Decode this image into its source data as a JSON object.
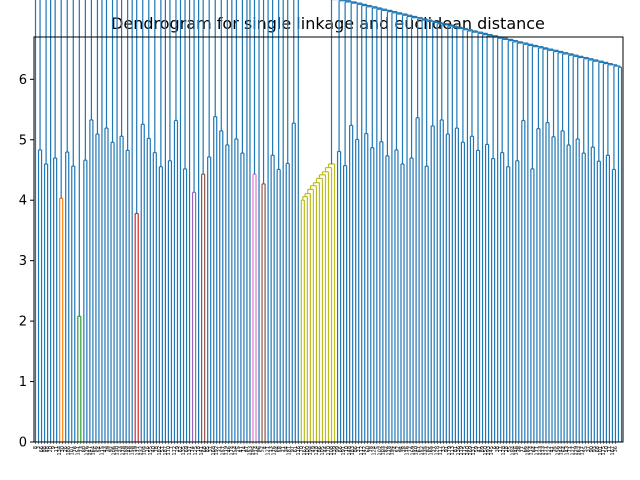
{
  "chart_data": {
    "type": "dendrogram",
    "title": "Dendrogram for single linkage and euclidean distance",
    "ylim": [
      0,
      6.7
    ],
    "yticks": [
      0,
      1,
      2,
      3,
      4,
      5,
      6
    ],
    "grid": false,
    "legend": "none",
    "leaf_count": 195,
    "colors": {
      "above_threshold": "#1f77b4",
      "orange": "#ff7f0e",
      "green": "#2ca02c",
      "red": "#d62728",
      "purple": "#9467bd",
      "brown": "#8c564b",
      "pink": "#e377c2",
      "olive": "#bcbd22",
      "cyan": "#17becf"
    },
    "colored_clusters": [
      {
        "color": "orange",
        "merge_height": 4.03,
        "leaves": 2
      },
      {
        "color": "green",
        "merge_height": 2.08,
        "leaves": 2
      },
      {
        "color": "red",
        "merge_height": 3.78,
        "leaves": 2
      },
      {
        "color": "purple",
        "merge_height": 4.13,
        "leaves": 2
      },
      {
        "color": "brown",
        "merge_height": 4.43,
        "leaves": 2
      },
      {
        "color": "pink",
        "merge_height": 4.43,
        "leaves": 2
      },
      {
        "color": "brown",
        "merge_height": 4.27,
        "leaves": 2
      },
      {
        "color": "olive",
        "merge_height": 4.6,
        "leaves": 12
      },
      {
        "color": "cyan",
        "merge_height": 4.18,
        "leaves": 2
      }
    ],
    "chain_merge_heights": [
      6.2,
      6.1,
      6.02,
      5.98,
      5.95,
      5.9,
      5.87,
      5.85,
      5.83,
      5.8,
      5.78,
      5.75,
      5.72,
      5.7,
      5.68,
      5.65,
      5.62,
      5.6,
      5.58,
      5.55,
      5.52,
      5.5,
      5.47,
      5.45,
      5.42,
      5.4,
      5.38,
      5.35,
      5.32,
      5.3,
      5.28,
      5.25,
      5.22
    ],
    "top_merges": [
      6.35,
      6.3,
      6.25,
      6.2,
      5.27
    ],
    "leaf_labels": [
      "8",
      "3",
      "66",
      "88",
      "48",
      "20",
      "9",
      "11",
      "134",
      "30",
      "26",
      "186",
      "101",
      "76",
      "151",
      "73",
      "80",
      "126",
      "147",
      "164",
      "56",
      "54",
      "115",
      "43",
      "39",
      "92",
      "106",
      "130",
      "23",
      "178",
      "189",
      "48",
      "158",
      "19",
      "177",
      "132",
      "104",
      "16",
      "155",
      "40",
      "78",
      "182",
      "57",
      "187",
      "110",
      "7",
      "172",
      "29",
      "62",
      "135",
      "69",
      "137",
      "74",
      "125",
      "18",
      "141",
      "68",
      "85",
      "37",
      "168",
      "192",
      "31",
      "157",
      "119",
      "46",
      "174",
      "154",
      "25",
      "47",
      "14",
      "87",
      "153",
      "194",
      "114",
      "96",
      "52",
      "4",
      "121",
      "13",
      "176",
      "84",
      "58",
      "21",
      "34",
      "181",
      "97",
      "61",
      "116",
      "70",
      "162",
      "100",
      "194",
      "49",
      "128",
      "86",
      "105",
      "44",
      "170",
      "108",
      "139",
      "99",
      "66",
      "191",
      "10",
      "148",
      "183",
      "86",
      "31",
      "112",
      "142",
      "60",
      "78",
      "124",
      "5",
      "102",
      "103",
      "82",
      "118",
      "194",
      "24",
      "52",
      "94",
      "28",
      "176",
      "72",
      "169",
      "140",
      "67",
      "152",
      "135",
      "82",
      "165",
      "27",
      "128",
      "117",
      "33",
      "91",
      "179",
      "113",
      "81",
      "136",
      "179",
      "175",
      "140",
      "169",
      "131",
      "59",
      "41",
      "89",
      "150",
      "193",
      "145",
      "6",
      "38",
      "17",
      "128",
      "18",
      "55",
      "184",
      "146",
      "38",
      "77",
      "66",
      "184",
      "114",
      "64",
      "171",
      "123",
      "173",
      "171",
      "122",
      "41",
      "35",
      "156",
      "144",
      "64",
      "143",
      "71",
      "127",
      "129",
      "162",
      "117",
      "55",
      "37",
      "90",
      "93",
      "68",
      "101",
      "175",
      "50",
      "17",
      "167",
      "36"
    ]
  }
}
